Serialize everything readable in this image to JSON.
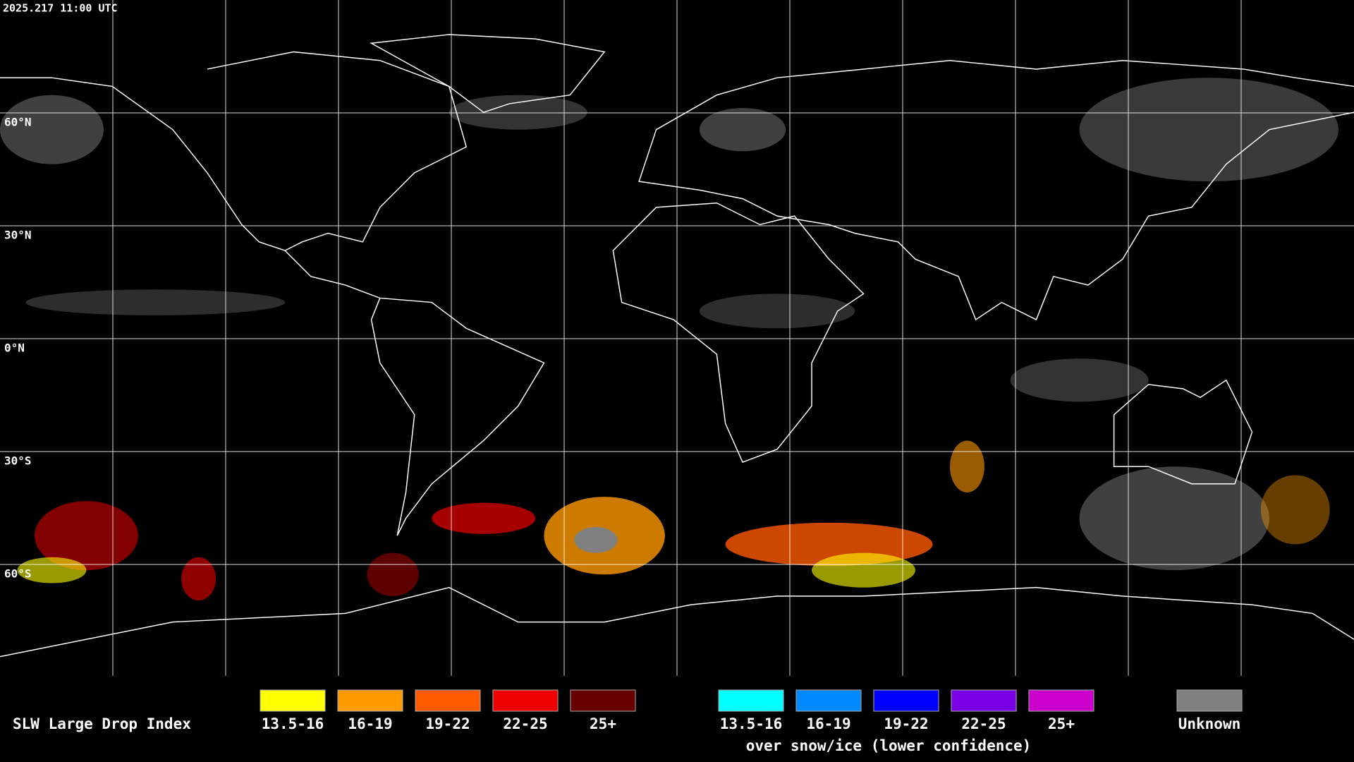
{
  "header": {
    "timestamp": "2025.217 11:00 UTC"
  },
  "map": {
    "latitude_labels": [
      "60°N",
      "30°N",
      "0°N",
      "30°S",
      "60°S"
    ]
  },
  "legend": {
    "title": "SLW Large Drop Index",
    "items": [
      {
        "label": "13.5-16",
        "color": "#ffff00"
      },
      {
        "label": "16-19",
        "color": "#ff9a00"
      },
      {
        "label": "19-22",
        "color": "#ff5a00"
      },
      {
        "label": "22-25",
        "color": "#ee0000"
      },
      {
        "label": "25+",
        "color": "#660000"
      }
    ],
    "snow_items": [
      {
        "label": "13.5-16",
        "color": "#00ffff"
      },
      {
        "label": "16-19",
        "color": "#0088ff"
      },
      {
        "label": "19-22",
        "color": "#0000ff"
      },
      {
        "label": "22-25",
        "color": "#7a00e6"
      },
      {
        "label": "25+",
        "color": "#cc00cc"
      }
    ],
    "snow_note": "over snow/ice (lower confidence)",
    "unknown": {
      "label": "Unknown",
      "color": "#808080"
    }
  }
}
